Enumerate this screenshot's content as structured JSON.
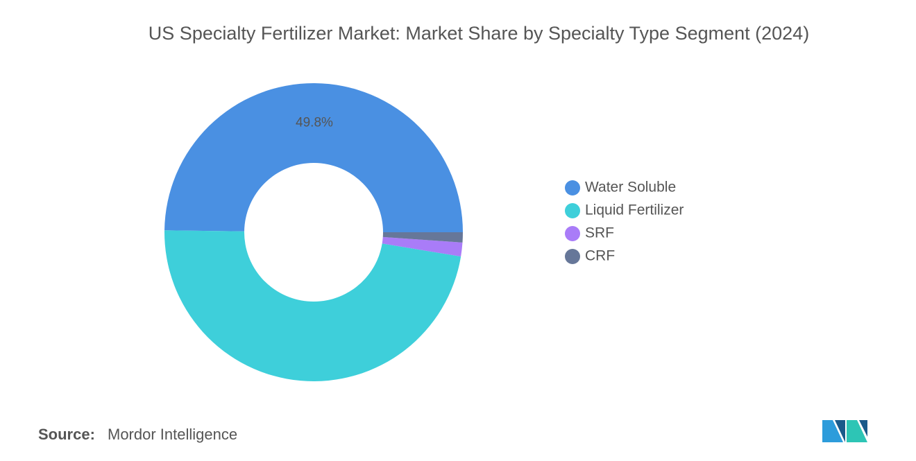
{
  "chart_data": {
    "type": "donut",
    "title": "US Specialty Fertilizer Market: Market Share by Specialty Type Segment (2024)",
    "categories": [
      "Water Soluble",
      "Liquid Fertilizer",
      "SRF",
      "CRF"
    ],
    "values": [
      49.8,
      47.6,
      1.5,
      1.1
    ],
    "value_labels": [
      "49.8%",
      null,
      null,
      null
    ],
    "colors": [
      "#4a90e2",
      "#3ecfda",
      "#a97cf8",
      "#667799"
    ],
    "legend": "right"
  },
  "footer": {
    "source_label": "Source:",
    "source": "Mordor Intelligence"
  }
}
